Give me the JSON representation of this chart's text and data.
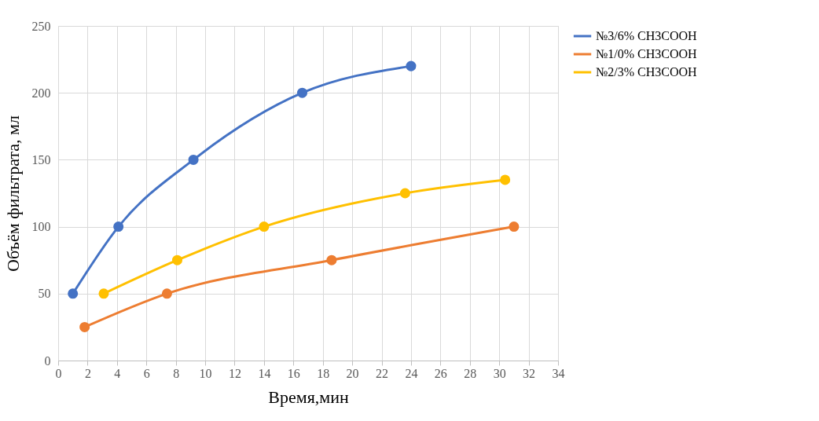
{
  "chart_data": {
    "type": "line",
    "xlabel": "Время,мин",
    "ylabel": "Объём фильтрата, мл",
    "xlim": [
      0,
      34
    ],
    "xticks": [
      0,
      2,
      4,
      6,
      8,
      10,
      12,
      14,
      16,
      18,
      20,
      22,
      24,
      26,
      28,
      30,
      32,
      34
    ],
    "ylim": [
      0,
      250
    ],
    "yticks": [
      0,
      50,
      100,
      150,
      200,
      250
    ],
    "grid": true,
    "legend": "right",
    "marker": "circle",
    "line_style": "solid",
    "series": [
      {
        "name": "№3/6% CH3COOH",
        "color": "#4472c4",
        "x": [
          1.0,
          4.1,
          9.2,
          16.6,
          24.0
        ],
        "values": [
          50,
          100,
          150,
          200,
          220
        ]
      },
      {
        "name": "№1/0% CH3COOH",
        "color": "#ed7d31",
        "x": [
          1.8,
          7.4,
          18.6,
          31.0
        ],
        "values": [
          25,
          50,
          75,
          100
        ]
      },
      {
        "name": "№2/3% CH3COOH",
        "color": "#ffc000",
        "x": [
          3.1,
          8.1,
          14.0,
          23.6,
          30.4
        ],
        "values": [
          50,
          75,
          100,
          125,
          135
        ]
      }
    ]
  }
}
